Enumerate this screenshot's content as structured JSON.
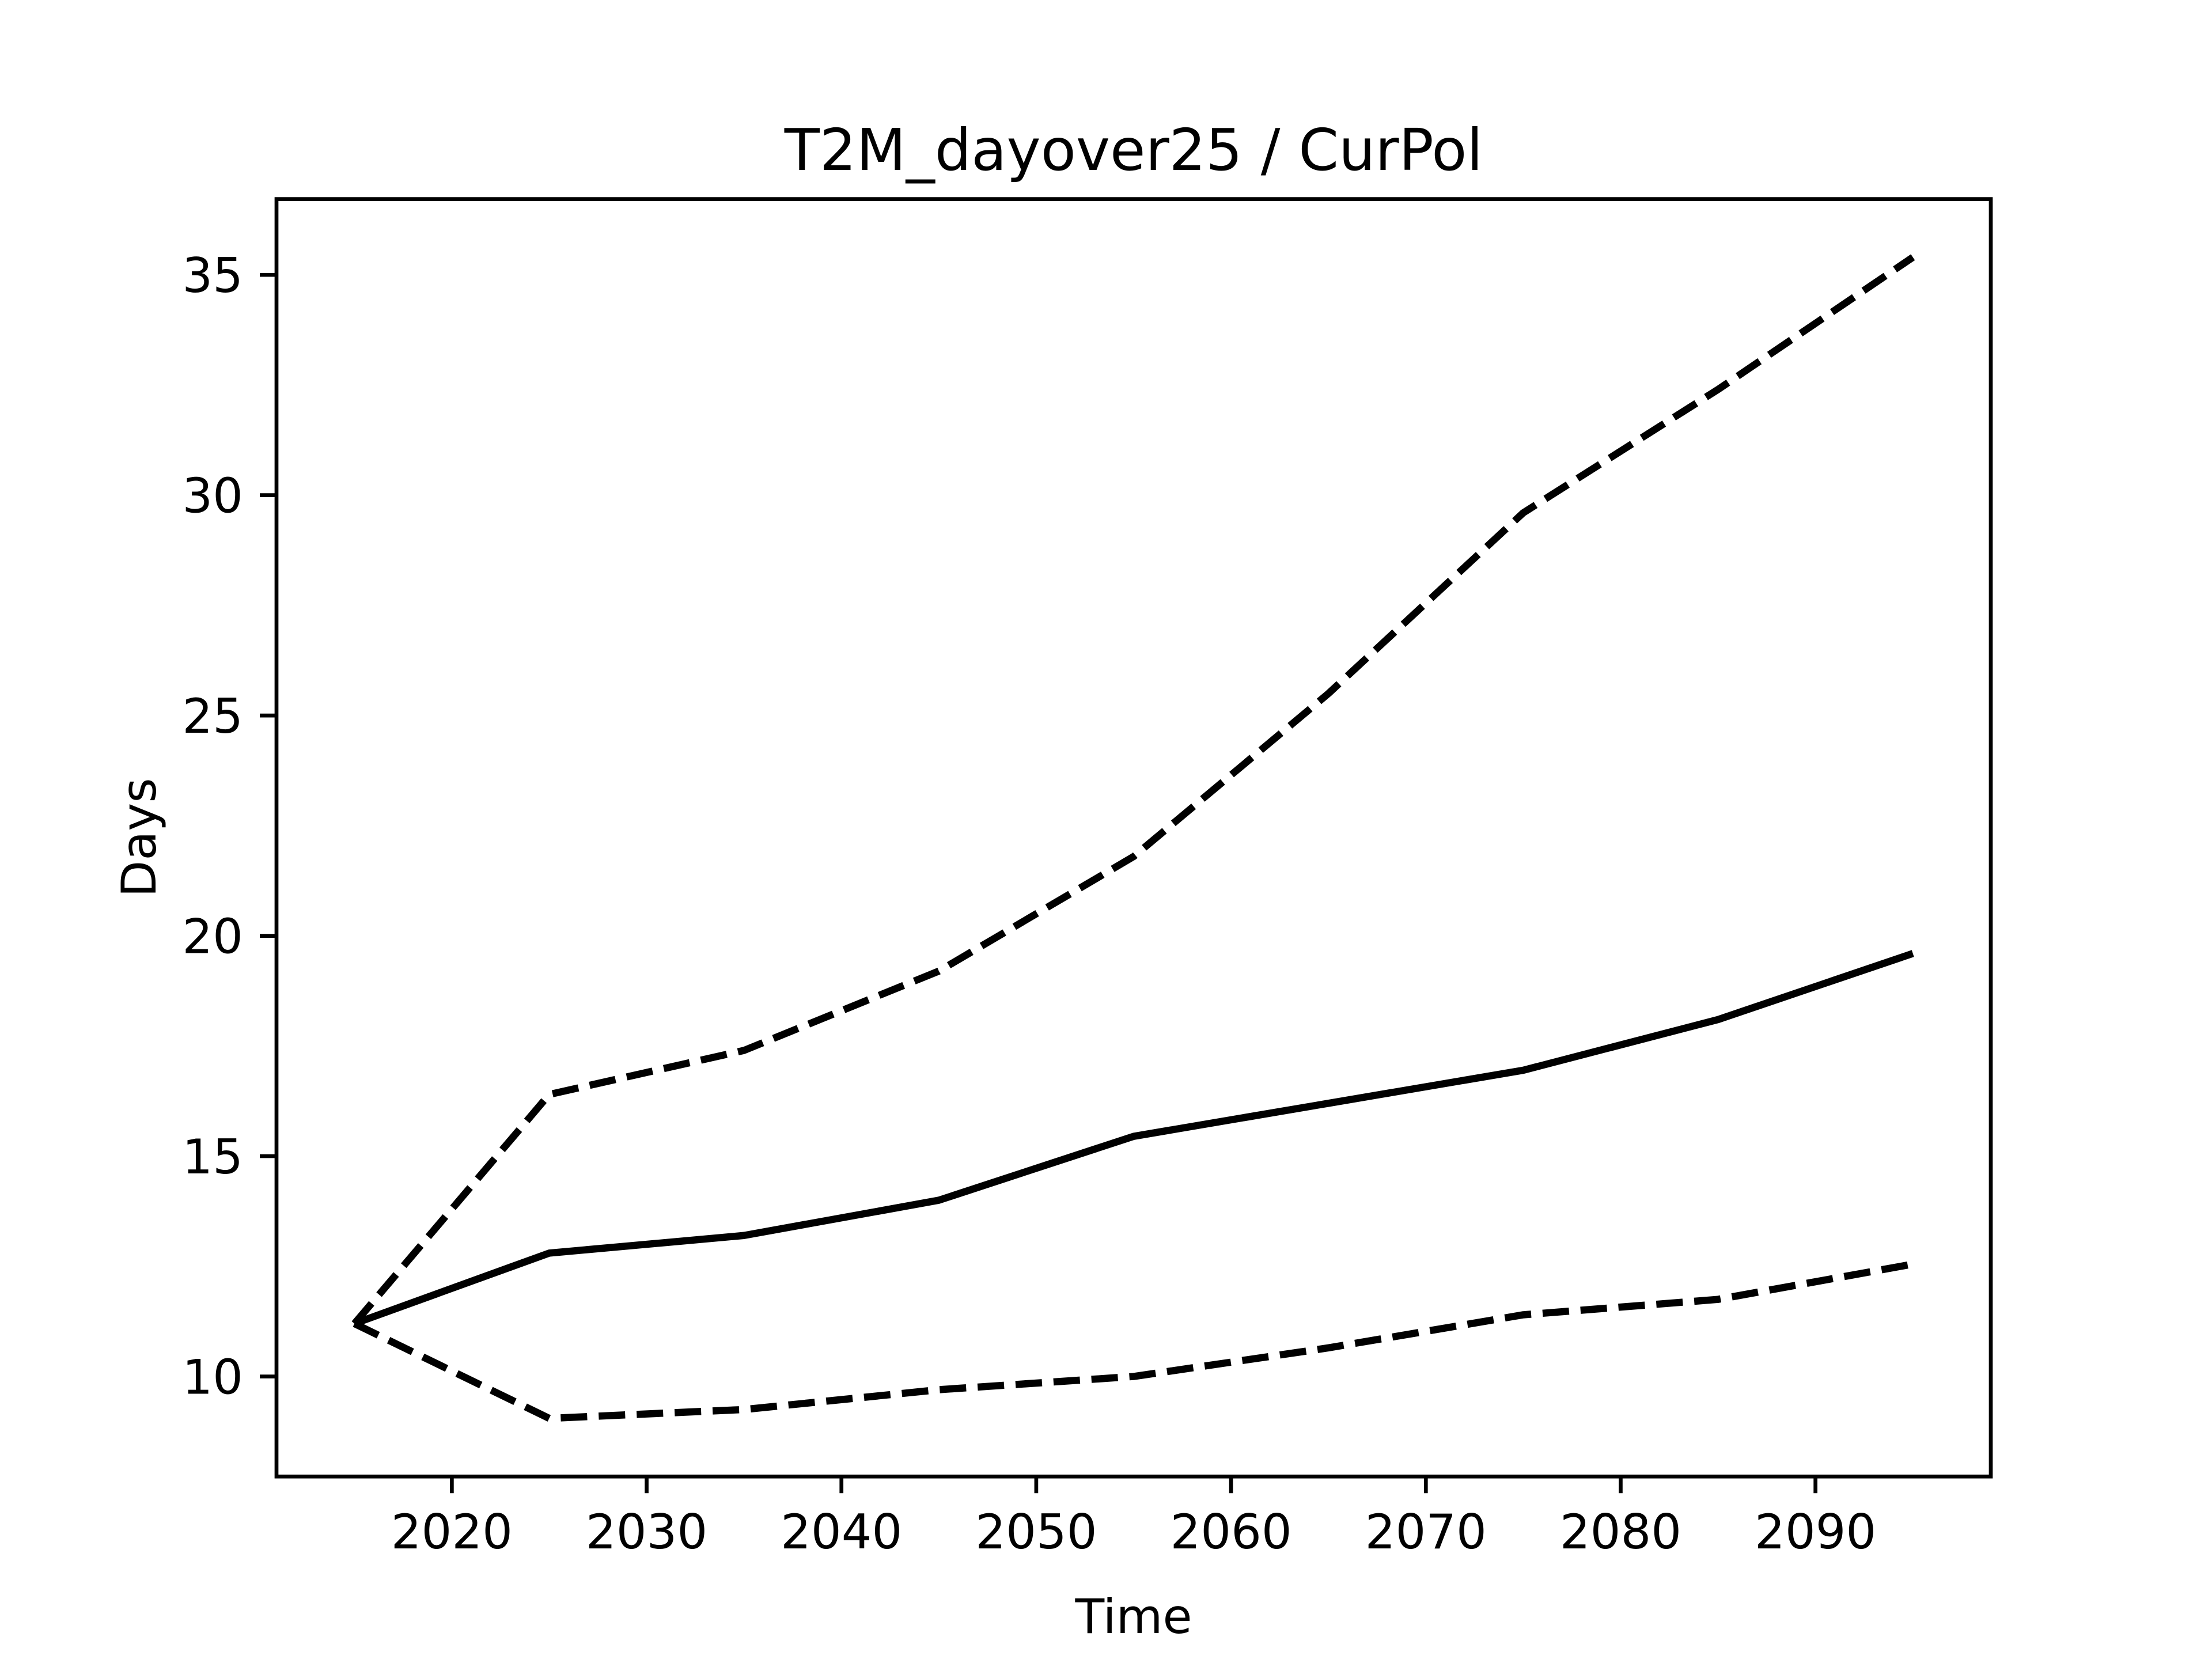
{
  "chart_data": {
    "type": "line",
    "title": "T2M_dayover25 / CurPol",
    "x_label": "Time",
    "y_label": "Days",
    "x": [
      2015,
      2025,
      2035,
      2045,
      2055,
      2065,
      2075,
      2085,
      2095
    ],
    "series": [
      {
        "color": "#000000",
        "linestyle": "solid",
        "values": [
          11.2,
          12.8,
          13.2,
          14.0,
          15.45,
          16.2,
          16.95,
          18.1,
          19.6
        ]
      },
      {
        "color": "#000000",
        "linestyle": "dashed",
        "values": [
          11.2,
          16.4,
          17.4,
          19.2,
          21.8,
          25.5,
          29.6,
          32.4,
          35.4
        ]
      },
      {
        "color": "#000000",
        "linestyle": "dashed",
        "values": [
          11.2,
          9.05,
          9.25,
          9.7,
          10.0,
          10.65,
          11.4,
          11.75,
          12.55
        ]
      }
    ],
    "xlim": [
      2011,
      2099
    ],
    "xticks": [
      2020,
      2030,
      2040,
      2050,
      2060,
      2070,
      2080,
      2090
    ],
    "ylim": [
      7.73,
      36.72
    ],
    "yticks": [
      10,
      15,
      20,
      25,
      30,
      35
    ],
    "grid": false
  }
}
